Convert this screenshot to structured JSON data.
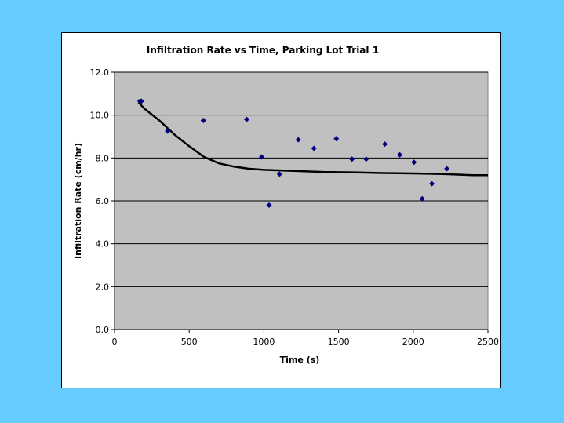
{
  "chart_data": {
    "type": "scatter",
    "title": "Infiltration Rate vs Time, Parking Lot Trial 1",
    "xlabel": "Time (s)",
    "ylabel": "Infiltration Rate (cm/hr)",
    "xlim": [
      0,
      2500
    ],
    "ylim": [
      0,
      12
    ],
    "x_ticks": [
      "0",
      "500",
      "1000",
      "1500",
      "2000",
      "2500"
    ],
    "y_ticks": [
      "0.0",
      "2.0",
      "4.0",
      "6.0",
      "8.0",
      "10.0",
      "12.0"
    ],
    "grid": "horizontal",
    "legend": "none",
    "series": [
      {
        "kind": "points",
        "x": [
          170,
          180,
          355,
          595,
          885,
          985,
          1035,
          1105,
          1230,
          1335,
          1485,
          1590,
          1685,
          1810,
          1910,
          2005,
          2060,
          2125,
          2225
        ],
        "y": [
          10.65,
          10.65,
          9.25,
          9.75,
          9.8,
          8.05,
          5.8,
          7.25,
          8.85,
          8.45,
          8.9,
          7.95,
          7.95,
          8.65,
          8.15,
          7.8,
          6.1,
          6.8,
          7.5
        ]
      },
      {
        "kind": "trendline",
        "x": [
          160,
          200,
          300,
          400,
          500,
          600,
          700,
          800,
          900,
          1000,
          1200,
          1400,
          1600,
          1800,
          2000,
          2200,
          2400,
          2500
        ],
        "y": [
          10.6,
          10.3,
          9.75,
          9.1,
          8.55,
          8.05,
          7.75,
          7.6,
          7.5,
          7.45,
          7.4,
          7.35,
          7.33,
          7.3,
          7.28,
          7.25,
          7.2,
          7.2
        ]
      }
    ],
    "colors": {
      "background": "#66CCFF",
      "plot_area": "#C0C0C0",
      "marker": "#000080",
      "trendline": "#000000",
      "gridline": "#000000"
    }
  }
}
